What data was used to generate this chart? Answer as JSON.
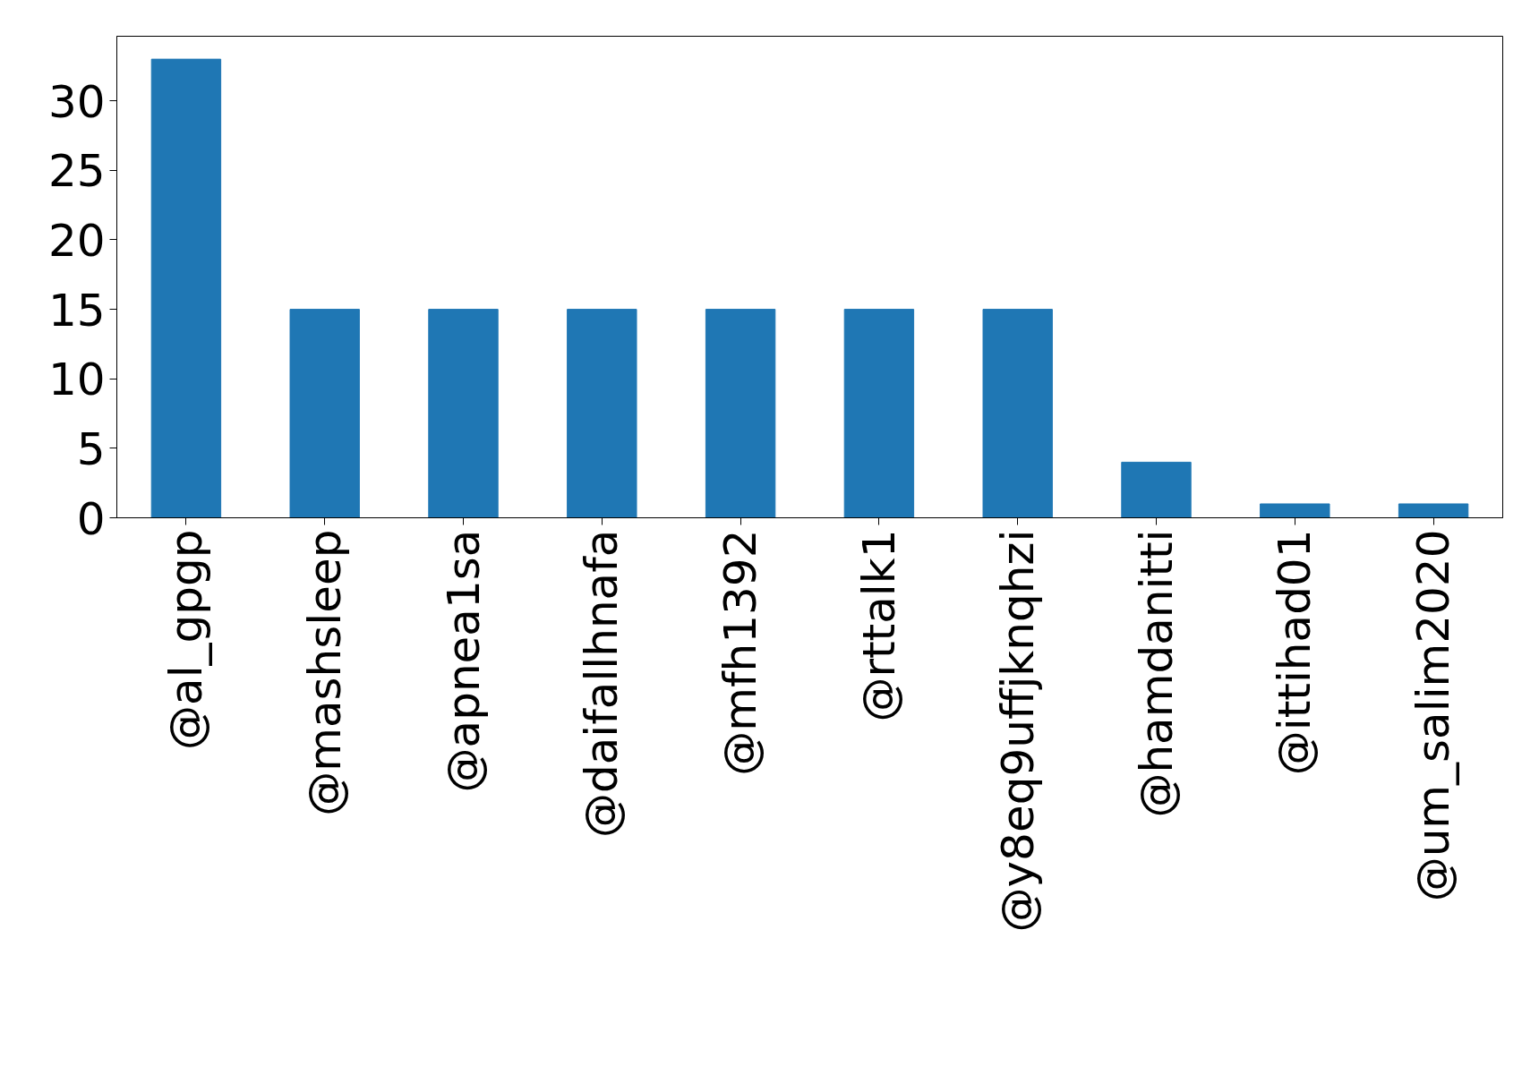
{
  "chart_data": {
    "type": "bar",
    "categories": [
      "@al_gpgp",
      "@mashsleep",
      "@apnea1sa",
      "@daifallhnafa",
      "@mfh1392",
      "@rttalk1",
      "@y8eq9uffjknqhzi",
      "@hamdanitti",
      "@ittihad01",
      "@um_salim2020"
    ],
    "values": [
      33,
      15,
      15,
      15,
      15,
      15,
      15,
      4,
      1,
      1
    ],
    "color": "#1f77b4",
    "ylim": [
      0,
      34.65
    ],
    "yticks": [
      0,
      5,
      10,
      15,
      20,
      25,
      30
    ],
    "grid": false
  }
}
